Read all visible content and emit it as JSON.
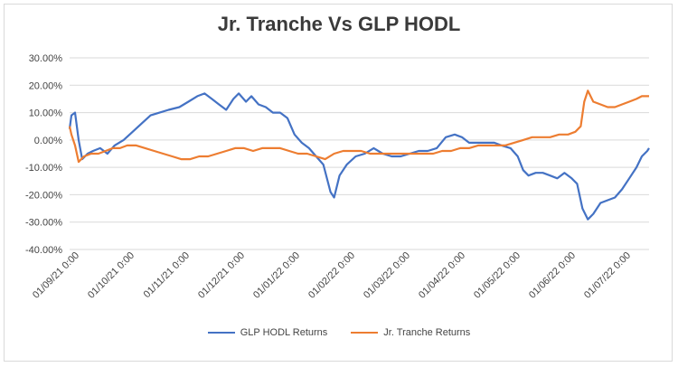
{
  "chart_data": {
    "type": "line",
    "title": "Jr. Tranche Vs GLP HODL",
    "xlabel": "",
    "ylabel": "",
    "x_tick_labels": [
      "01/09/21 0:00",
      "01/10/21 0:00",
      "01/11/21 0:00",
      "01/12/21 0:00",
      "01/01/22 0:00",
      "01/02/22 0:00",
      "01/03/22 0:00",
      "01/04/22 0:00",
      "01/05/22 0:00",
      "01/06/22 0:00",
      "01/07/22 0:00"
    ],
    "x_range": [
      "2021-09-01",
      "2022-07-20"
    ],
    "ylim": [
      -40,
      30
    ],
    "y_ticks": [
      30,
      20,
      10,
      0,
      -10,
      -20,
      -30,
      -40
    ],
    "y_tick_labels": [
      "30.00%",
      "20.00%",
      "10.00%",
      "0.00%",
      "-10.00%",
      "-20.00%",
      "-30.00%",
      "-40.00%"
    ],
    "grid": true,
    "legend_position": "bottom",
    "series": [
      {
        "name": "GLP HODL Returns",
        "color": "#4472c4",
        "points": [
          [
            "2021-09-01",
            4
          ],
          [
            "2021-09-02",
            9
          ],
          [
            "2021-09-04",
            10
          ],
          [
            "2021-09-06",
            0
          ],
          [
            "2021-09-08",
            -7
          ],
          [
            "2021-09-11",
            -5
          ],
          [
            "2021-09-14",
            -4
          ],
          [
            "2021-09-18",
            -3
          ],
          [
            "2021-09-22",
            -5
          ],
          [
            "2021-09-26",
            -2
          ],
          [
            "2021-10-01",
            0
          ],
          [
            "2021-10-06",
            3
          ],
          [
            "2021-10-11",
            6
          ],
          [
            "2021-10-16",
            9
          ],
          [
            "2021-10-21",
            10
          ],
          [
            "2021-10-26",
            11
          ],
          [
            "2021-11-01",
            12
          ],
          [
            "2021-11-06",
            14
          ],
          [
            "2021-11-11",
            16
          ],
          [
            "2021-11-15",
            17
          ],
          [
            "2021-11-19",
            15
          ],
          [
            "2021-11-23",
            13
          ],
          [
            "2021-11-27",
            11
          ],
          [
            "2021-12-01",
            15
          ],
          [
            "2021-12-04",
            17
          ],
          [
            "2021-12-08",
            14
          ],
          [
            "2021-12-11",
            16
          ],
          [
            "2021-12-15",
            13
          ],
          [
            "2021-12-19",
            12
          ],
          [
            "2021-12-23",
            10
          ],
          [
            "2021-12-27",
            10
          ],
          [
            "2021-12-31",
            8
          ],
          [
            "2022-01-04",
            2
          ],
          [
            "2022-01-08",
            -1
          ],
          [
            "2022-01-12",
            -3
          ],
          [
            "2022-01-16",
            -6
          ],
          [
            "2022-01-20",
            -9
          ],
          [
            "2022-01-24",
            -19
          ],
          [
            "2022-01-26",
            -21
          ],
          [
            "2022-01-29",
            -13
          ],
          [
            "2022-02-02",
            -9
          ],
          [
            "2022-02-07",
            -6
          ],
          [
            "2022-02-12",
            -5
          ],
          [
            "2022-02-17",
            -3
          ],
          [
            "2022-02-22",
            -5
          ],
          [
            "2022-02-27",
            -6
          ],
          [
            "2022-03-04",
            -6
          ],
          [
            "2022-03-09",
            -5
          ],
          [
            "2022-03-14",
            -4
          ],
          [
            "2022-03-19",
            -4
          ],
          [
            "2022-03-24",
            -3
          ],
          [
            "2022-03-29",
            1
          ],
          [
            "2022-04-03",
            2
          ],
          [
            "2022-04-07",
            1
          ],
          [
            "2022-04-11",
            -1
          ],
          [
            "2022-04-15",
            -1
          ],
          [
            "2022-04-20",
            -1
          ],
          [
            "2022-04-25",
            -1
          ],
          [
            "2022-04-29",
            -2
          ],
          [
            "2022-05-04",
            -3
          ],
          [
            "2022-05-08",
            -6
          ],
          [
            "2022-05-11",
            -11
          ],
          [
            "2022-05-14",
            -13
          ],
          [
            "2022-05-18",
            -12
          ],
          [
            "2022-05-22",
            -12
          ],
          [
            "2022-05-26",
            -13
          ],
          [
            "2022-05-30",
            -14
          ],
          [
            "2022-06-03",
            -12
          ],
          [
            "2022-06-07",
            -14
          ],
          [
            "2022-06-10",
            -16
          ],
          [
            "2022-06-13",
            -25
          ],
          [
            "2022-06-16",
            -29
          ],
          [
            "2022-06-19",
            -27
          ],
          [
            "2022-06-23",
            -23
          ],
          [
            "2022-06-27",
            -22
          ],
          [
            "2022-07-01",
            -21
          ],
          [
            "2022-07-05",
            -18
          ],
          [
            "2022-07-09",
            -14
          ],
          [
            "2022-07-13",
            -10
          ],
          [
            "2022-07-16",
            -6
          ],
          [
            "2022-07-19",
            -4
          ],
          [
            "2022-07-20",
            -3
          ]
        ]
      },
      {
        "name": "Jr. Tranche Returns",
        "color": "#ed7d31",
        "points": [
          [
            "2021-09-01",
            5
          ],
          [
            "2021-09-02",
            2
          ],
          [
            "2021-09-04",
            -2
          ],
          [
            "2021-09-06",
            -8
          ],
          [
            "2021-09-09",
            -6
          ],
          [
            "2021-09-13",
            -5
          ],
          [
            "2021-09-17",
            -5
          ],
          [
            "2021-09-21",
            -4
          ],
          [
            "2021-09-25",
            -3
          ],
          [
            "2021-09-29",
            -3
          ],
          [
            "2021-10-03",
            -2
          ],
          [
            "2021-10-08",
            -2
          ],
          [
            "2021-10-13",
            -3
          ],
          [
            "2021-10-18",
            -4
          ],
          [
            "2021-10-23",
            -5
          ],
          [
            "2021-10-28",
            -6
          ],
          [
            "2021-11-02",
            -7
          ],
          [
            "2021-11-07",
            -7
          ],
          [
            "2021-11-12",
            -6
          ],
          [
            "2021-11-17",
            -6
          ],
          [
            "2021-11-22",
            -5
          ],
          [
            "2021-11-27",
            -4
          ],
          [
            "2021-12-02",
            -3
          ],
          [
            "2021-12-07",
            -3
          ],
          [
            "2021-12-12",
            -4
          ],
          [
            "2021-12-17",
            -3
          ],
          [
            "2021-12-22",
            -3
          ],
          [
            "2021-12-27",
            -3
          ],
          [
            "2022-01-01",
            -4
          ],
          [
            "2022-01-06",
            -5
          ],
          [
            "2022-01-11",
            -5
          ],
          [
            "2022-01-16",
            -6
          ],
          [
            "2022-01-21",
            -7
          ],
          [
            "2022-01-26",
            -5
          ],
          [
            "2022-01-31",
            -4
          ],
          [
            "2022-02-05",
            -4
          ],
          [
            "2022-02-10",
            -4
          ],
          [
            "2022-02-15",
            -5
          ],
          [
            "2022-02-20",
            -5
          ],
          [
            "2022-02-25",
            -5
          ],
          [
            "2022-03-02",
            -5
          ],
          [
            "2022-03-07",
            -5
          ],
          [
            "2022-03-12",
            -5
          ],
          [
            "2022-03-17",
            -5
          ],
          [
            "2022-03-22",
            -5
          ],
          [
            "2022-03-27",
            -4
          ],
          [
            "2022-04-01",
            -4
          ],
          [
            "2022-04-06",
            -3
          ],
          [
            "2022-04-11",
            -3
          ],
          [
            "2022-04-16",
            -2
          ],
          [
            "2022-04-21",
            -2
          ],
          [
            "2022-04-26",
            -2
          ],
          [
            "2022-05-01",
            -2
          ],
          [
            "2022-05-06",
            -1
          ],
          [
            "2022-05-11",
            0
          ],
          [
            "2022-05-16",
            1
          ],
          [
            "2022-05-21",
            1
          ],
          [
            "2022-05-26",
            1
          ],
          [
            "2022-05-31",
            2
          ],
          [
            "2022-06-05",
            2
          ],
          [
            "2022-06-09",
            3
          ],
          [
            "2022-06-12",
            5
          ],
          [
            "2022-06-14",
            14
          ],
          [
            "2022-06-16",
            18
          ],
          [
            "2022-06-19",
            14
          ],
          [
            "2022-06-23",
            13
          ],
          [
            "2022-06-27",
            12
          ],
          [
            "2022-07-01",
            12
          ],
          [
            "2022-07-05",
            13
          ],
          [
            "2022-07-09",
            14
          ],
          [
            "2022-07-13",
            15
          ],
          [
            "2022-07-16",
            16
          ],
          [
            "2022-07-18",
            16
          ],
          [
            "2022-07-20",
            16
          ]
        ]
      }
    ]
  }
}
